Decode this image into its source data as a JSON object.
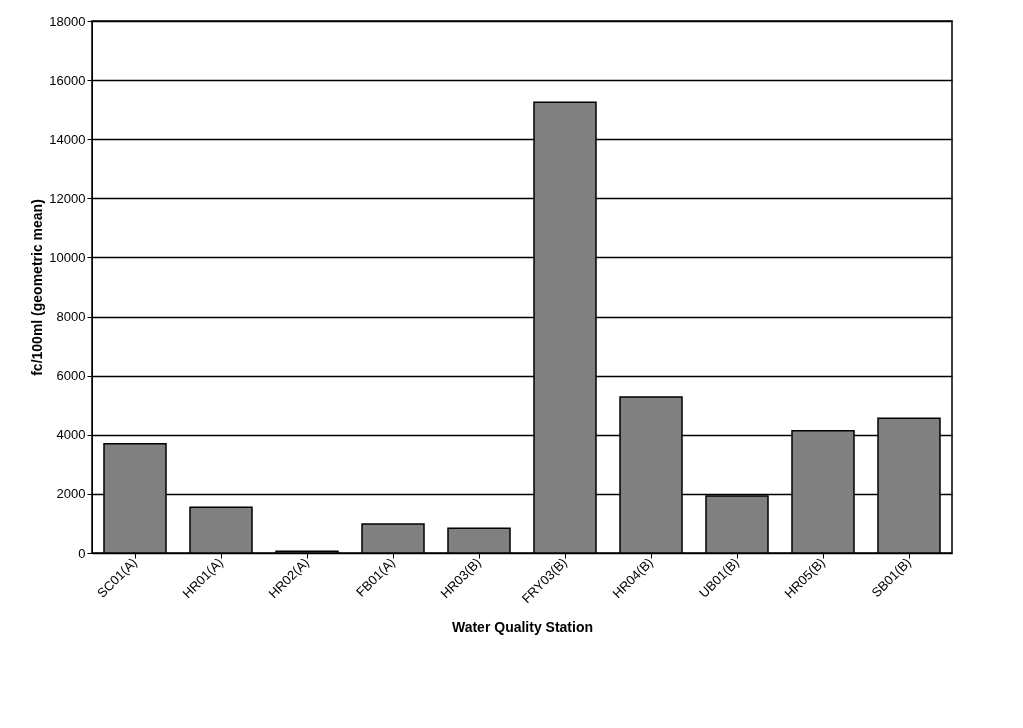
{
  "chart_data": {
    "type": "bar",
    "xlabel": "Water Quality Station",
    "ylabel": "fc/100ml (geometric mean)",
    "categories": [
      "SC01(A)",
      "HR01(A)",
      "HR02(A)",
      "FB01(A)",
      "HR03(B)",
      "FRY03(B)",
      "HR04(B)",
      "UB01(B)",
      "HR05(B)",
      "SB01(B)"
    ],
    "values": [
      3700,
      1550,
      60,
      980,
      840,
      15250,
      5280,
      1930,
      4140,
      4560
    ],
    "color": "#808080",
    "ylim": [
      0,
      18000
    ],
    "yticks": [
      0,
      2000,
      4000,
      6000,
      8000,
      10000,
      12000,
      14000,
      16000,
      18000
    ],
    "grid": "y"
  }
}
